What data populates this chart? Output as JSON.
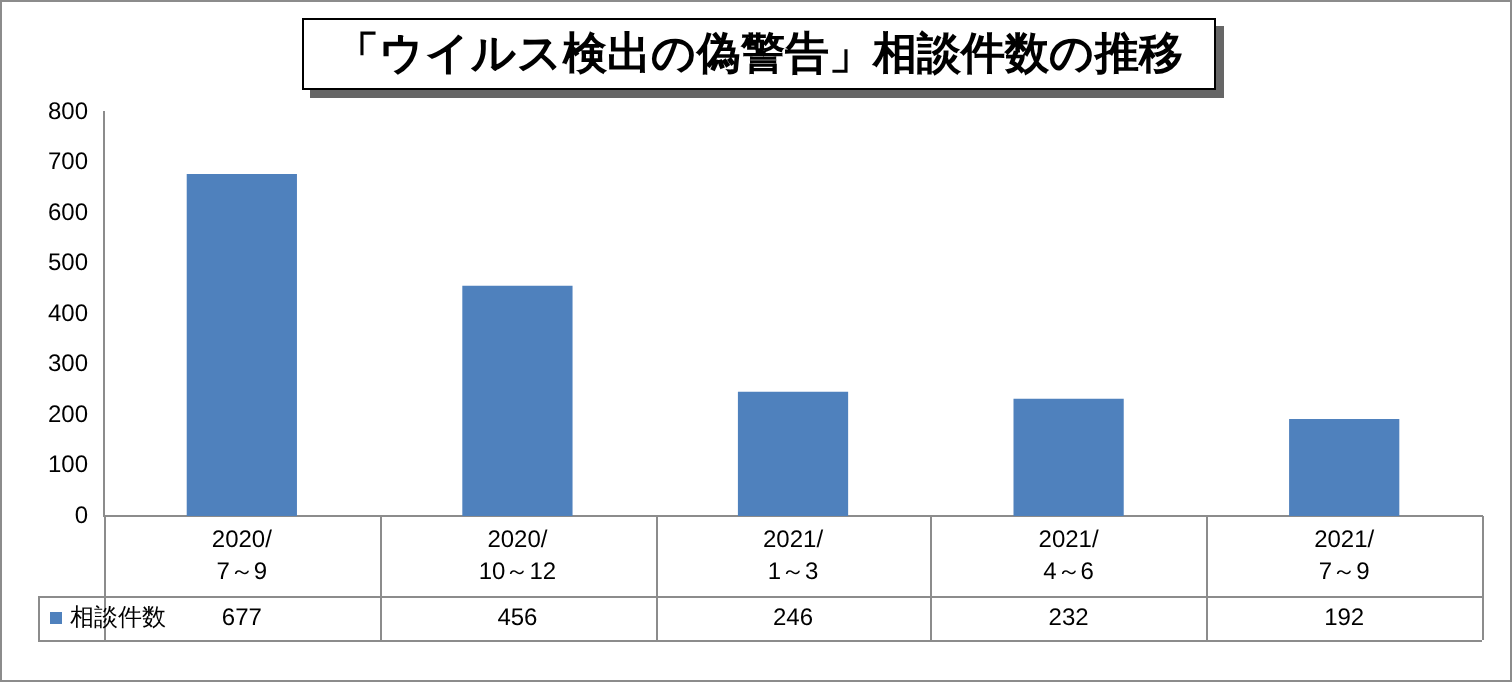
{
  "chart_data": {
    "type": "bar",
    "title": "「ウイルス検出の偽警告」相談件数の推移",
    "categories": [
      "2020/7～9",
      "2020/10～12",
      "2021/1～3",
      "2021/4～6",
      "2021/7～9"
    ],
    "series": [
      {
        "name": "相談件数",
        "color": "#4f81bd",
        "values": [
          677,
          456,
          246,
          232,
          192
        ]
      }
    ],
    "ylim": [
      0,
      800
    ],
    "yticks": [
      0,
      100,
      200,
      300,
      400,
      500,
      600,
      700,
      800
    ],
    "grid": false,
    "legend": "bottom",
    "data_labels": true
  }
}
